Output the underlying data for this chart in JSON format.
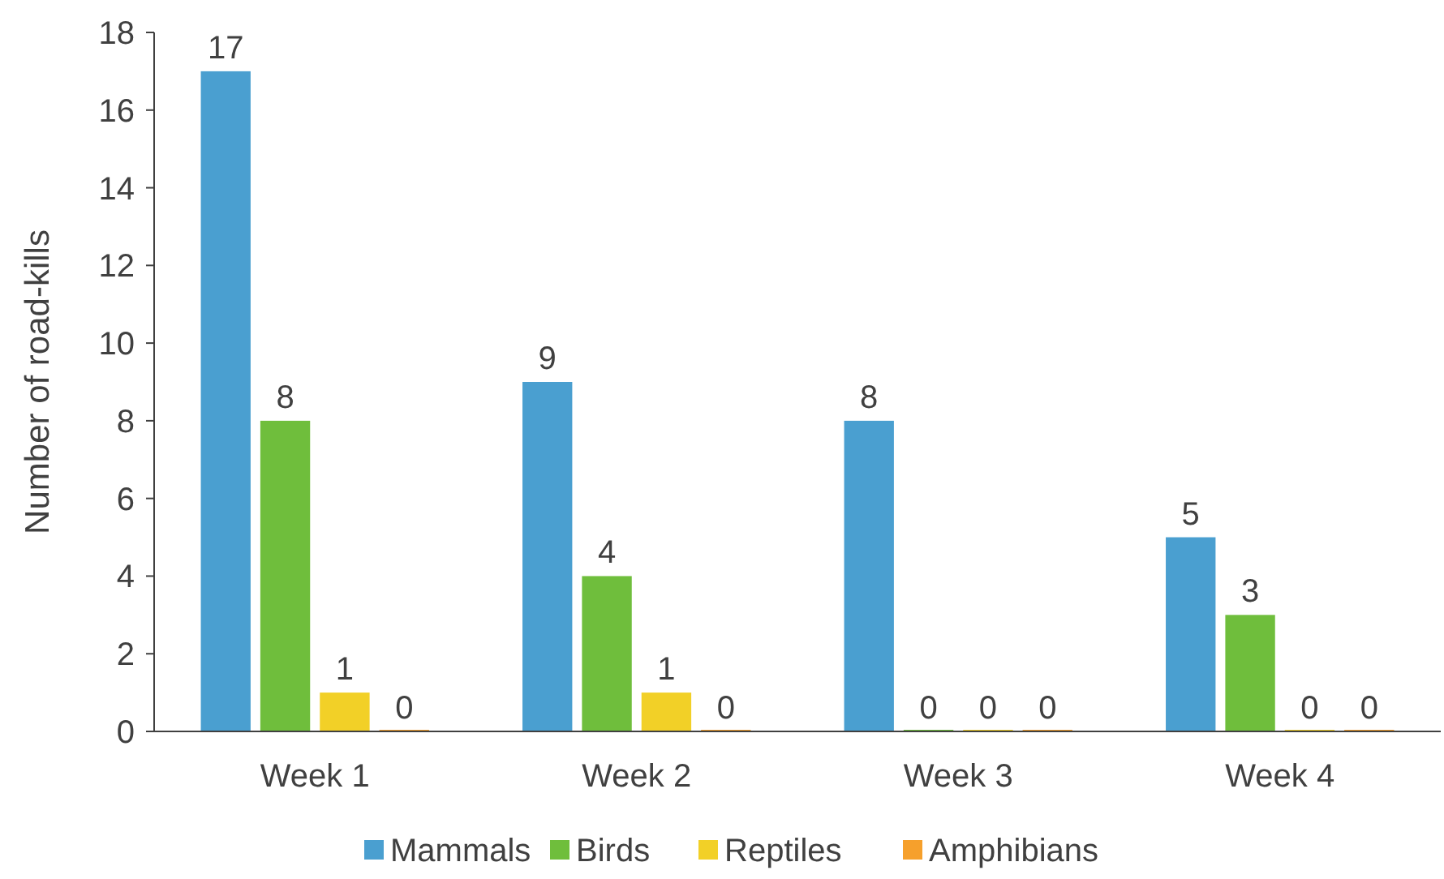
{
  "chart_data": {
    "type": "bar",
    "ylabel": "Number of road-kills",
    "categories": [
      "Week 1",
      "Week 2",
      "Week 3",
      "Week 4"
    ],
    "series": [
      {
        "name": "Mammals",
        "color": "#4a9fd0",
        "values": [
          17,
          9,
          8,
          5
        ]
      },
      {
        "name": "Birds",
        "color": "#6fbe3c",
        "values": [
          8,
          4,
          0,
          3
        ]
      },
      {
        "name": "Reptiles",
        "color": "#f2d027",
        "values": [
          1,
          1,
          0,
          0
        ]
      },
      {
        "name": "Amphibians",
        "color": "#f6a02c",
        "values": [
          0,
          0,
          0,
          0
        ]
      }
    ],
    "ylim": [
      0,
      18
    ],
    "yticks": [
      0,
      2,
      4,
      6,
      8,
      10,
      12,
      14,
      16,
      18
    ],
    "data_labels": true,
    "legend": "bottom",
    "grid": false
  }
}
